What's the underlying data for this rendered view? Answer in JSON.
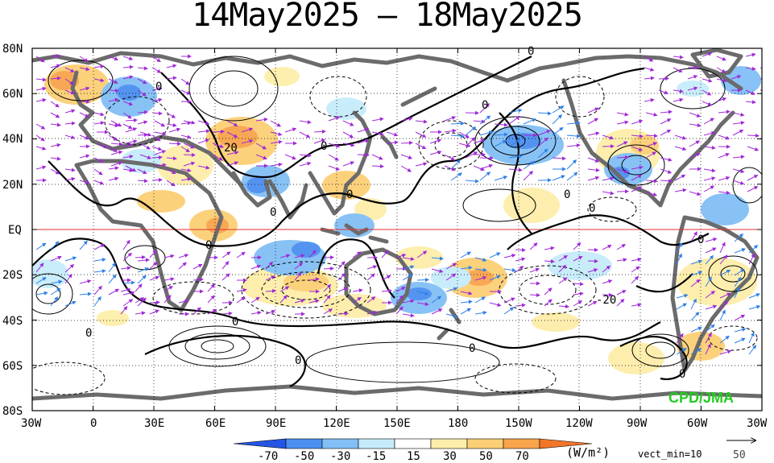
{
  "title": "14May2025 – 18May2025",
  "y_labels": [
    "80N",
    "60N",
    "40N",
    "20N",
    "EQ",
    "20S",
    "40S",
    "60S",
    "80S"
  ],
  "x_labels": [
    "30W",
    "0",
    "30E",
    "60E",
    "90E",
    "120E",
    "150E",
    "180",
    "150W",
    "120W",
    "90W",
    "60W",
    "30W"
  ],
  "contour_labels": [
    "0",
    "0",
    "0",
    "0",
    "0",
    "0",
    "0",
    "0",
    "0",
    "0",
    "0",
    "0",
    "0",
    "0",
    "0",
    "20",
    "-20"
  ],
  "colorbar": {
    "ticks": [
      "-70",
      "-50",
      "-30",
      "-15",
      "15",
      "30",
      "50",
      "70"
    ],
    "colors": [
      "#2456e6",
      "#4b8ff0",
      "#82bff5",
      "#c6ecfa",
      "#ffffff",
      "#fdeeaa",
      "#fccf76",
      "#f8a44b",
      "#f2762a"
    ],
    "unit": "(W/m²)",
    "note": "vect_min=10"
  },
  "vector_ref": "50",
  "credit": "CPD/JMA",
  "colors": {
    "land": "#6b6b6b",
    "equator": "#e03030",
    "arrow_purple": "#a028d8",
    "arrow_blue": "#2f7fe8",
    "credit": "#22cc22"
  }
}
